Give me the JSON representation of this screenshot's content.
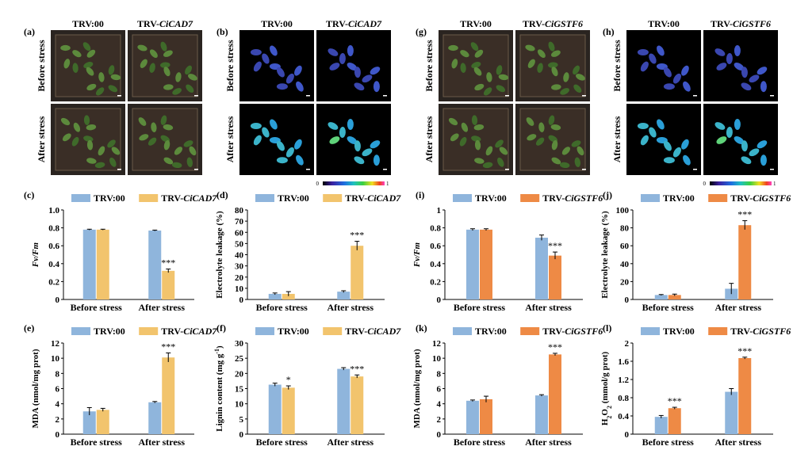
{
  "colors": {
    "control": "#8fb5dc",
    "cad7": "#f2c46d",
    "gstf6": "#ee8a45",
    "photo_bg": "#1a1a1a",
    "fluor_bg": "#000000"
  },
  "photo_panels": [
    {
      "letter": "(a)",
      "col1": "TRV:00",
      "col2_prefix": "TRV-",
      "col2_gene": "CiCAD7",
      "row1": "Before stress",
      "row2": "After stress",
      "kind": "rgb"
    },
    {
      "letter": "(b)",
      "col1": "TRV:00",
      "col2_prefix": "TRV-",
      "col2_gene": "CiCAD7",
      "row1": "Before stress",
      "row2": "After stress",
      "kind": "fluor",
      "scale_min": "0",
      "scale_max": "1"
    },
    {
      "letter": "(g)",
      "col1": "TRV:00",
      "col2_prefix": "TRV-",
      "col2_gene": "CiGSTF6",
      "row1": "Before stress",
      "row2": "After stress",
      "kind": "rgb"
    },
    {
      "letter": "(h)",
      "col1": "TRV:00",
      "col2_prefix": "TRV-",
      "col2_gene": "CiGSTF6",
      "row1": "Before stress",
      "row2": "After stress",
      "kind": "fluor",
      "scale_min": "0",
      "scale_max": "1"
    }
  ],
  "chart_data": [
    {
      "letter": "(c)",
      "type": "bar",
      "legend": [
        "TRV:00",
        "TRV-CiCAD7"
      ],
      "categories": [
        "Before stress",
        "After stress"
      ],
      "ylabel": "Fv/Fm",
      "ylim": [
        0,
        1.0
      ],
      "yticks": [
        "0",
        "0.2",
        "0.4",
        "0.6",
        "0.8",
        "1.0"
      ],
      "series": [
        {
          "name": "TRV:00",
          "values": [
            0.78,
            0.77
          ],
          "err": [
            0.005,
            0.005
          ]
        },
        {
          "name": "TRV-CiCAD7",
          "values": [
            0.78,
            0.32
          ],
          "err": [
            0.005,
            0.02
          ]
        }
      ],
      "annotations": [
        {
          "category": 1,
          "series": 1,
          "text": "***"
        }
      ]
    },
    {
      "letter": "(d)",
      "type": "bar",
      "legend": [
        "TRV:00",
        "TRV-CiCAD7"
      ],
      "categories": [
        "Before stress",
        "After stress"
      ],
      "ylabel": "Electrolyte leakage (%)",
      "ylim": [
        0,
        80
      ],
      "yticks": [
        "0",
        "10",
        "20",
        "30",
        "40",
        "50",
        "60",
        "70",
        "80"
      ],
      "series": [
        {
          "name": "TRV:00",
          "values": [
            5,
            7
          ],
          "err": [
            0.8,
            0.8
          ]
        },
        {
          "name": "TRV-CiCAD7",
          "values": [
            5,
            48
          ],
          "err": [
            2,
            4
          ]
        }
      ],
      "annotations": [
        {
          "category": 1,
          "series": 1,
          "text": "***"
        }
      ]
    },
    {
      "letter": "(e)",
      "type": "bar",
      "legend": [
        "TRV:00",
        "TRV-CiCAD7"
      ],
      "categories": [
        "Before stress",
        "After stress"
      ],
      "ylabel": "MDA (nmol/mg prot)",
      "ylim": [
        0,
        12
      ],
      "yticks": [
        "0",
        "2",
        "4",
        "6",
        "8",
        "10",
        "12"
      ],
      "series": [
        {
          "name": "TRV:00",
          "values": [
            3.0,
            4.2
          ],
          "err": [
            0.5,
            0.1
          ]
        },
        {
          "name": "TRV-CiCAD7",
          "values": [
            3.2,
            10.1
          ],
          "err": [
            0.2,
            0.6
          ]
        }
      ],
      "annotations": [
        {
          "category": 1,
          "series": 1,
          "text": "***"
        }
      ]
    },
    {
      "letter": "(f)",
      "type": "bar",
      "legend": [
        "TRV:00",
        "TRV-CiCAD7"
      ],
      "categories": [
        "Before stress",
        "After stress"
      ],
      "ylabel": "Lignin content (mg g",
      "ylabel_sup": "-1",
      "ylabel_end": ")",
      "ylim": [
        0,
        30
      ],
      "yticks": [
        "0",
        "5",
        "10",
        "15",
        "20",
        "25",
        "30"
      ],
      "series": [
        {
          "name": "TRV:00",
          "values": [
            16.3,
            21.5
          ],
          "err": [
            0.5,
            0.4
          ]
        },
        {
          "name": "TRV-CiCAD7",
          "values": [
            15.3,
            19.0
          ],
          "err": [
            0.6,
            0.5
          ]
        }
      ],
      "annotations": [
        {
          "category": 0,
          "series": 1,
          "text": "*"
        },
        {
          "category": 1,
          "series": 1,
          "text": "***"
        }
      ]
    },
    {
      "letter": "(i)",
      "type": "bar",
      "legend": [
        "TRV:00",
        "TRV-CiGSTF6"
      ],
      "categories": [
        "Before stress",
        "After stress"
      ],
      "ylabel": "Fv/Fm",
      "ylim": [
        0,
        1
      ],
      "yticks": [
        "0",
        "0.2",
        "0.4",
        "0.6",
        "0.8",
        "1"
      ],
      "series": [
        {
          "name": "TRV:00",
          "values": [
            0.78,
            0.69
          ],
          "err": [
            0.01,
            0.03
          ]
        },
        {
          "name": "TRV-CiGSTF6",
          "values": [
            0.78,
            0.49
          ],
          "err": [
            0.01,
            0.04
          ]
        }
      ],
      "annotations": [
        {
          "category": 1,
          "series": 1,
          "text": "***"
        }
      ]
    },
    {
      "letter": "(j)",
      "type": "bar",
      "legend": [
        "TRV:00",
        "TRV-CiGSTF6"
      ],
      "categories": [
        "Before stress",
        "After stress"
      ],
      "ylabel": "Electrolyte leakage (%)",
      "ylim": [
        0,
        100
      ],
      "yticks": [
        "0",
        "20",
        "40",
        "60",
        "80",
        "100"
      ],
      "series": [
        {
          "name": "TRV:00",
          "values": [
            5,
            12
          ],
          "err": [
            0.5,
            6
          ]
        },
        {
          "name": "TRV-CiGSTF6",
          "values": [
            5,
            83
          ],
          "err": [
            1,
            5
          ]
        }
      ],
      "annotations": [
        {
          "category": 1,
          "series": 1,
          "text": "***"
        }
      ]
    },
    {
      "letter": "(k)",
      "type": "bar",
      "legend": [
        "TRV:00",
        "TRV-CiGSTF6"
      ],
      "categories": [
        "Before stress",
        "After stress"
      ],
      "ylabel": "MDA (nmol/mg prot)",
      "ylim": [
        0,
        12
      ],
      "yticks": [
        "0",
        "2",
        "4",
        "6",
        "8",
        "10",
        "12"
      ],
      "series": [
        {
          "name": "TRV:00",
          "values": [
            4.4,
            5.1
          ],
          "err": [
            0.1,
            0.1
          ]
        },
        {
          "name": "TRV-CiGSTF6",
          "values": [
            4.6,
            10.5
          ],
          "err": [
            0.4,
            0.15
          ]
        }
      ],
      "annotations": [
        {
          "category": 1,
          "series": 1,
          "text": "***"
        }
      ]
    },
    {
      "letter": "(l)",
      "type": "bar",
      "legend": [
        "TRV:00",
        "TRV-CiGSTF6"
      ],
      "categories": [
        "Before stress",
        "After stress"
      ],
      "ylabel_html": "H2O2 (mmol/g prot)",
      "ylabel_a": "H",
      "ylabel_sub1": "2",
      "ylabel_b": "O",
      "ylabel_sub2": "2",
      "ylabel_c": " (mmol/g prot)",
      "ylim": [
        0,
        2
      ],
      "yticks": [
        "0",
        "0.4",
        "0.8",
        "1.2",
        "1.6",
        "2"
      ],
      "series": [
        {
          "name": "TRV:00",
          "values": [
            0.38,
            0.93
          ],
          "err": [
            0.03,
            0.07
          ]
        },
        {
          "name": "TRV-CiGSTF6",
          "values": [
            0.57,
            1.67
          ],
          "err": [
            0.02,
            0.02
          ]
        }
      ],
      "annotations": [
        {
          "category": 0,
          "series": 1,
          "text": "***"
        },
        {
          "category": 1,
          "series": 1,
          "text": "***"
        }
      ]
    }
  ]
}
